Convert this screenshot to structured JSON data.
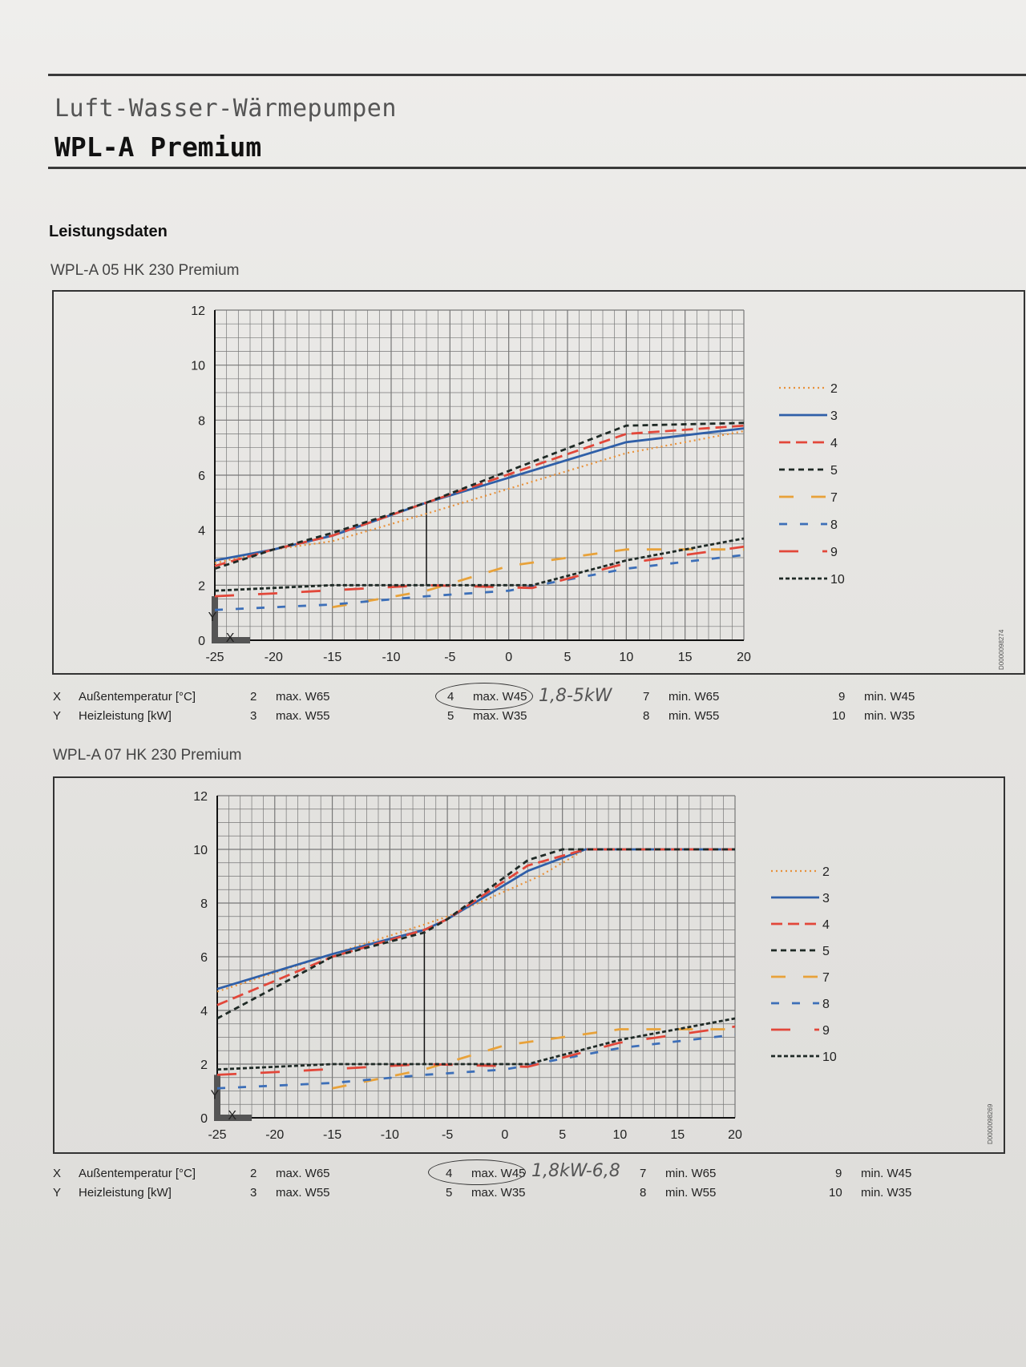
{
  "header": {
    "line1": "Luft-Wasser-Wärmepumpen",
    "line2": "WPL-A Premium"
  },
  "section_title": "Leistungsdaten",
  "charts": [
    {
      "subtitle": "WPL-A 05 HK 230 Premium",
      "doc_id": "D0000098274",
      "legend": [
        "2",
        "3",
        "4",
        "5",
        "7",
        "8",
        "9",
        "10"
      ],
      "caption": {
        "x_key": "X",
        "x_label": "Außentemperatur [°C]",
        "y_key": "Y",
        "y_label": "Heizleistung [kW]",
        "items": [
          {
            "n": "2",
            "t": "max. W65"
          },
          {
            "n": "3",
            "t": "max. W55"
          },
          {
            "n": "4",
            "t": "max. W45"
          },
          {
            "n": "5",
            "t": "max. W35"
          },
          {
            "n": "7",
            "t": "min. W65"
          },
          {
            "n": "8",
            "t": "min. W55"
          },
          {
            "n": "9",
            "t": "min. W45"
          },
          {
            "n": "10",
            "t": "min. W35"
          }
        ]
      },
      "handwritten_note": "1,8-5kW"
    },
    {
      "subtitle": "WPL-A 07 HK 230 Premium",
      "doc_id": "D0000098269",
      "legend": [
        "2",
        "3",
        "4",
        "5",
        "7",
        "8",
        "9",
        "10"
      ],
      "caption": {
        "x_key": "X",
        "x_label": "Außentemperatur [°C]",
        "y_key": "Y",
        "y_label": "Heizleistung [kW]",
        "items": [
          {
            "n": "2",
            "t": "max. W65"
          },
          {
            "n": "3",
            "t": "max. W55"
          },
          {
            "n": "4",
            "t": "max. W45"
          },
          {
            "n": "5",
            "t": "max. W35"
          },
          {
            "n": "7",
            "t": "min. W65"
          },
          {
            "n": "8",
            "t": "min. W55"
          },
          {
            "n": "9",
            "t": "min. W45"
          },
          {
            "n": "10",
            "t": "min. W35"
          }
        ]
      },
      "handwritten_note": "1,8kW-6,8"
    }
  ],
  "series_styles": {
    "2": {
      "color": "#e8913a",
      "dash": "2,4"
    },
    "3": {
      "color": "#2f5fa8",
      "dash": ""
    },
    "4": {
      "color": "#e2473a",
      "dash": "14,7"
    },
    "5": {
      "color": "#1f2a26",
      "dash": "7,5"
    },
    "7": {
      "color": "#e8a23a",
      "dash": "18,22"
    },
    "8": {
      "color": "#3d6fb8",
      "dash": "10,16"
    },
    "9": {
      "color": "#e2473a",
      "dash": "24,30"
    },
    "10": {
      "color": "#1f2a26",
      "dash": "5,3"
    }
  },
  "chart_data": [
    {
      "type": "line",
      "title": "WPL-A 05 HK 230 Premium",
      "xlabel": "Außentemperatur [°C]",
      "ylabel": "Heizleistung [kW]",
      "xlim": [
        -25,
        20
      ],
      "ylim": [
        0,
        12
      ],
      "xticks": [
        -25,
        -20,
        -15,
        -10,
        -5,
        0,
        5,
        10,
        15,
        20
      ],
      "yticks": [
        0,
        2,
        4,
        6,
        8,
        10,
        12
      ],
      "grid": true,
      "legend": "right",
      "reference_line": {
        "x": -7,
        "y0": 2.0,
        "y1": 5.0
      },
      "series": [
        {
          "name": "2",
          "x": [
            -25,
            -20,
            -15,
            -7,
            10,
            20
          ],
          "y": [
            2.8,
            3.3,
            3.6,
            4.6,
            6.8,
            7.6
          ]
        },
        {
          "name": "3",
          "x": [
            -25,
            -20,
            -15,
            -7,
            10,
            20
          ],
          "y": [
            2.9,
            3.3,
            3.8,
            5.0,
            7.2,
            7.7
          ]
        },
        {
          "name": "4",
          "x": [
            -25,
            -20,
            -15,
            -7,
            10,
            20
          ],
          "y": [
            2.7,
            3.3,
            3.8,
            5.0,
            7.5,
            7.8
          ]
        },
        {
          "name": "5",
          "x": [
            -25,
            -20,
            -15,
            -7,
            10,
            20
          ],
          "y": [
            2.6,
            3.3,
            3.9,
            5.0,
            7.8,
            7.9
          ]
        },
        {
          "name": "7",
          "x": [
            -15,
            -7,
            0,
            10,
            20
          ],
          "y": [
            1.2,
            1.8,
            2.7,
            3.3,
            3.3
          ]
        },
        {
          "name": "8",
          "x": [
            -25,
            -15,
            -7,
            0,
            10,
            20
          ],
          "y": [
            1.1,
            1.3,
            1.6,
            1.8,
            2.6,
            3.1
          ]
        },
        {
          "name": "9",
          "x": [
            -25,
            -20,
            -7,
            2,
            10,
            20
          ],
          "y": [
            1.6,
            1.7,
            2.0,
            1.9,
            2.8,
            3.4
          ]
        },
        {
          "name": "10",
          "x": [
            -25,
            -15,
            -7,
            2,
            10,
            20
          ],
          "y": [
            1.8,
            2.0,
            2.0,
            2.0,
            2.9,
            3.7
          ]
        }
      ]
    },
    {
      "type": "line",
      "title": "WPL-A 07 HK 230 Premium",
      "xlabel": "Außentemperatur [°C]",
      "ylabel": "Heizleistung [kW]",
      "xlim": [
        -25,
        20
      ],
      "ylim": [
        0,
        12
      ],
      "xticks": [
        -25,
        -20,
        -15,
        -10,
        -5,
        0,
        5,
        10,
        15,
        20
      ],
      "yticks": [
        0,
        2,
        4,
        6,
        8,
        10,
        12
      ],
      "grid": true,
      "legend": "right",
      "reference_line": {
        "x": -7,
        "y0": 2.0,
        "y1": 7.0
      },
      "series": [
        {
          "name": "2",
          "x": [
            -25,
            -15,
            -7,
            -5,
            3,
            7,
            20
          ],
          "y": [
            4.7,
            6.1,
            7.2,
            7.5,
            9.0,
            10.0,
            10.0
          ]
        },
        {
          "name": "3",
          "x": [
            -25,
            -15,
            -7,
            -5,
            2,
            7,
            20
          ],
          "y": [
            4.8,
            6.1,
            7.0,
            7.4,
            9.2,
            10.0,
            10.0
          ]
        },
        {
          "name": "4",
          "x": [
            -25,
            -15,
            -7,
            -5,
            2,
            7,
            20
          ],
          "y": [
            4.2,
            6.0,
            7.0,
            7.4,
            9.4,
            10.0,
            10.0
          ]
        },
        {
          "name": "5",
          "x": [
            -25,
            -15,
            -7,
            -5,
            2,
            5,
            20
          ],
          "y": [
            3.7,
            6.0,
            6.9,
            7.4,
            9.6,
            10.0,
            10.0
          ]
        },
        {
          "name": "7",
          "x": [
            -15,
            -7,
            0,
            10,
            20
          ],
          "y": [
            1.1,
            1.8,
            2.7,
            3.3,
            3.3
          ]
        },
        {
          "name": "8",
          "x": [
            -25,
            -15,
            -7,
            0,
            10,
            20
          ],
          "y": [
            1.1,
            1.3,
            1.6,
            1.8,
            2.6,
            3.1
          ]
        },
        {
          "name": "9",
          "x": [
            -25,
            -20,
            -7,
            2,
            10,
            20
          ],
          "y": [
            1.6,
            1.7,
            2.0,
            1.9,
            2.8,
            3.4
          ]
        },
        {
          "name": "10",
          "x": [
            -25,
            -15,
            -7,
            2,
            10,
            20
          ],
          "y": [
            1.8,
            2.0,
            2.0,
            2.0,
            2.9,
            3.7
          ]
        }
      ]
    }
  ]
}
